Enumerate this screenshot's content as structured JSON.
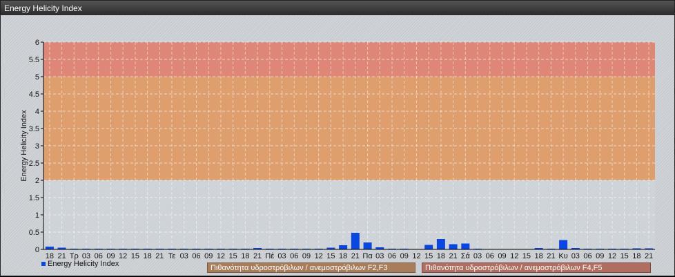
{
  "window_title": "Energy Helicity Index",
  "chart_data": {
    "type": "bar",
    "title": "",
    "ylabel": "Energy Helicity Index",
    "xlabel": "",
    "ylim": [
      0,
      6
    ],
    "yticks": [
      "0",
      "0.5",
      "1",
      "1.5",
      "2",
      "2.5",
      "3",
      "3.5",
      "4",
      "4.5",
      "5",
      "5.5",
      "6"
    ],
    "grid": true,
    "legend_position": "bottom-left",
    "categories": [
      "18",
      "21",
      "Τρ",
      "03",
      "06",
      "09",
      "12",
      "15",
      "18",
      "21",
      "Τε",
      "03",
      "06",
      "09",
      "12",
      "15",
      "18",
      "21",
      "Πέ",
      "03",
      "06",
      "09",
      "12",
      "15",
      "18",
      "21",
      "Πα",
      "03",
      "06",
      "09",
      "12",
      "15",
      "18",
      "21",
      "Σά",
      "03",
      "06",
      "09",
      "12",
      "15",
      "18",
      "21",
      "Κυ",
      "03",
      "06",
      "09",
      "12",
      "15",
      "18",
      "21"
    ],
    "series": [
      {
        "name": "Energy Helicity Index",
        "color": "#0a46e0",
        "values": [
          0.08,
          0.05,
          0.02,
          0.02,
          0.02,
          0.02,
          0.02,
          0.02,
          0.02,
          0.02,
          0.02,
          0.02,
          0.02,
          0.02,
          0.02,
          0.02,
          0.02,
          0.04,
          0.02,
          0.02,
          0.02,
          0.02,
          0.02,
          0.05,
          0.12,
          0.48,
          0.2,
          0.06,
          0.02,
          0.02,
          0.01,
          0.13,
          0.3,
          0.15,
          0.17,
          0.02,
          0.01,
          0.01,
          0.01,
          0.01,
          0.04,
          0.02,
          0.27,
          0.04,
          0.02,
          0.02,
          0.02,
          0.02,
          0.03,
          0.03
        ]
      }
    ],
    "bands": [
      {
        "from": 2,
        "to": 5,
        "color": "#e0955a",
        "label": "Πιθανότητα υδροστρόβιλων / ανεμοστρόβιλων F2,F3"
      },
      {
        "from": 5,
        "to": 6,
        "color": "#e27a66",
        "label": "Πιθανότητα υδροστρόβιλων / ανεμοστρόβιλων F4,F5"
      }
    ]
  }
}
